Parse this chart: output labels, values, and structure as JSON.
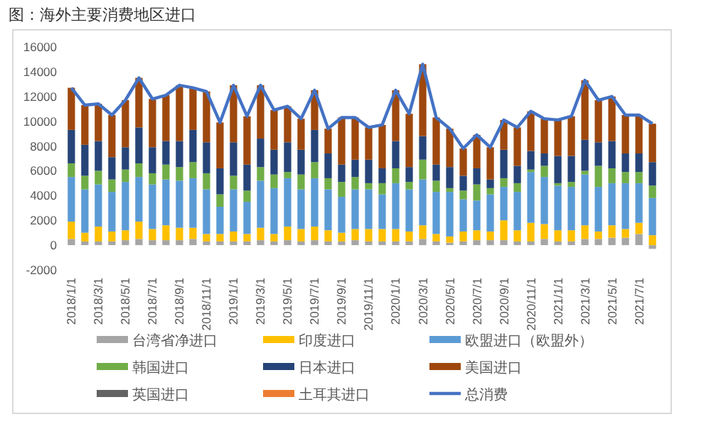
{
  "chart_data": {
    "type": "bar",
    "stacked": true,
    "title": "图：海外主要消费地区进口",
    "legend": "bottom",
    "ylim": [
      -2000,
      16000
    ],
    "yticks": [
      -2000,
      0,
      2000,
      4000,
      6000,
      8000,
      10000,
      12000,
      14000,
      16000
    ],
    "categories": [
      "2018/1/1",
      null,
      "2018/3/1",
      null,
      "2018/5/1",
      null,
      "2018/7/1",
      null,
      "2018/9/1",
      null,
      "2018/11/1",
      null,
      "2019/1/1",
      null,
      "2019/3/1",
      null,
      "2019/5/1",
      null,
      "2019/7/1",
      null,
      "2019/9/1",
      null,
      "2019/11/1",
      null,
      "2020/1/1",
      null,
      "2020/3/1",
      null,
      "2020/5/1",
      null,
      "2020/7/1",
      null,
      "2020/9/1",
      null,
      "2020/11/1",
      null,
      "2021/1/1",
      null,
      "2021/3/1",
      null,
      "2021/5/1",
      null,
      "2021/7/1",
      null
    ],
    "series": [
      {
        "name": "台湾省净进口",
        "color": "#a5a5a5",
        "values": [
          500,
          300,
          300,
          300,
          400,
          500,
          400,
          400,
          400,
          500,
          300,
          300,
          300,
          300,
          400,
          300,
          400,
          300,
          400,
          300,
          300,
          400,
          300,
          300,
          300,
          300,
          500,
          300,
          200,
          300,
          400,
          400,
          400,
          300,
          300,
          500,
          300,
          300,
          500,
          500,
          600,
          600,
          900,
          -300
        ]
      },
      {
        "name": "印度进口",
        "color": "#ffc000",
        "values": [
          1400,
          700,
          1200,
          800,
          800,
          1400,
          900,
          1200,
          1000,
          900,
          600,
          600,
          800,
          600,
          1000,
          600,
          1100,
          1000,
          1100,
          900,
          700,
          900,
          1000,
          1000,
          1000,
          800,
          1100,
          600,
          500,
          800,
          800,
          700,
          1600,
          900,
          1500,
          1200,
          900,
          900,
          1100,
          600,
          1000,
          700,
          900,
          800
        ]
      },
      {
        "name": "欧盟进口（欧盟外）",
        "color": "#5b9bd5",
        "values": [
          3600,
          3500,
          3400,
          3200,
          3900,
          3600,
          3600,
          3700,
          3800,
          4000,
          3600,
          2200,
          3400,
          2600,
          3800,
          3700,
          3900,
          3200,
          3900,
          3300,
          2900,
          3200,
          3200,
          2800,
          3700,
          3400,
          3700,
          3400,
          3600,
          2600,
          2400,
          3000,
          2700,
          3100,
          4100,
          3800,
          3600,
          3500,
          4100,
          3600,
          3400,
          3700,
          3200,
          3000
        ]
      },
      {
        "name": "韩国进口",
        "color": "#70ad47",
        "values": [
          1100,
          1100,
          1100,
          1000,
          1000,
          1100,
          900,
          1200,
          1100,
          1300,
          1300,
          1000,
          1100,
          900,
          1100,
          1100,
          500,
          1200,
          1300,
          900,
          1200,
          1000,
          500,
          900,
          1200,
          600,
          1600,
          900,
          300,
          700,
          1300,
          500,
          700,
          700,
          200,
          900,
          200,
          400,
          300,
          1700,
          1200,
          900,
          900,
          1000
        ]
      },
      {
        "name": "日本进口",
        "color": "#264478",
        "values": [
          2700,
          2500,
          2400,
          1800,
          1800,
          2900,
          2100,
          1900,
          2100,
          2600,
          2500,
          2100,
          2700,
          2100,
          2300,
          2000,
          2400,
          2000,
          2600,
          2000,
          1400,
          1400,
          1900,
          1200,
          2200,
          1200,
          1900,
          1300,
          1700,
          1200,
          1300,
          700,
          2300,
          1400,
          1500,
          1000,
          2200,
          2100,
          2500,
          1900,
          2200,
          1500,
          1500,
          1900
        ]
      },
      {
        "name": "美国进口",
        "color": "#9e480e",
        "values": [
          3400,
          3200,
          3000,
          3400,
          3800,
          4000,
          3900,
          3700,
          4500,
          3400,
          4100,
          3700,
          4600,
          3900,
          4300,
          3200,
          2900,
          2500,
          3200,
          2000,
          3800,
          3400,
          2600,
          3500,
          4100,
          4300,
          5800,
          3800,
          3100,
          2200,
          2700,
          2600,
          2400,
          3100,
          3200,
          2800,
          2900,
          3200,
          4800,
          3400,
          3600,
          3100,
          3100,
          3100
        ]
      },
      {
        "name": "英国进口",
        "color": "#636363",
        "values": [
          null,
          null,
          null,
          null,
          null,
          null,
          null,
          null,
          null,
          null,
          null,
          null,
          null,
          null,
          null,
          null,
          null,
          null,
          null,
          null,
          null,
          null,
          null,
          null,
          null,
          null,
          null,
          null,
          null,
          null,
          null,
          null,
          null,
          null,
          null,
          null,
          null,
          null,
          null,
          null,
          null,
          null,
          null,
          null
        ]
      },
      {
        "name": "土耳其进口",
        "color": "#ed7d31",
        "values": [
          null,
          null,
          null,
          null,
          null,
          null,
          null,
          null,
          null,
          null,
          null,
          null,
          null,
          null,
          null,
          null,
          null,
          null,
          null,
          null,
          null,
          null,
          null,
          null,
          null,
          null,
          null,
          null,
          null,
          null,
          null,
          null,
          null,
          null,
          null,
          null,
          null,
          null,
          null,
          null,
          null,
          null,
          null,
          null
        ]
      },
      {
        "name": "总消费",
        "type": "line",
        "color": "#4472c4",
        "values": [
          12700,
          11300,
          11400,
          10500,
          11700,
          13500,
          11800,
          12100,
          12900,
          12700,
          12400,
          9900,
          12900,
          10400,
          12900,
          10900,
          11200,
          10200,
          12500,
          9400,
          10300,
          10300,
          9500,
          9700,
          12500,
          10600,
          14600,
          10300,
          9400,
          7800,
          8900,
          7900,
          10100,
          9500,
          10800,
          10200,
          10100,
          10400,
          13300,
          11700,
          12000,
          10500,
          10500,
          9800
        ]
      }
    ]
  }
}
